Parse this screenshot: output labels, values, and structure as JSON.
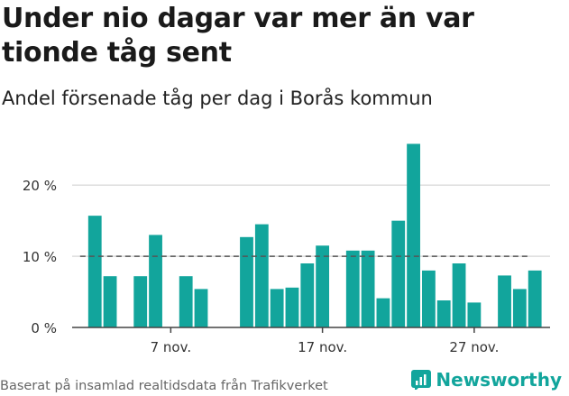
{
  "title": "Under nio dagar var mer än var tionde tåg sent",
  "subtitle": "Andel försenade tåg per dag i Borås kommun",
  "source": "Baserat på insamlad realtidsdata från Trafikverket",
  "brand": "Newsworthy",
  "colors": {
    "bar": "#12a59c",
    "reference_line": "#555555",
    "grid": "#dddddd",
    "brand": "#12a59c"
  },
  "chart_data": {
    "type": "bar",
    "title": "Andel försenade tåg per dag i Borås kommun",
    "xlabel": "",
    "ylabel": "",
    "x_unit": "day of month (november)",
    "x_ticks": [
      {
        "day": 7,
        "label": "7 nov."
      },
      {
        "day": 17,
        "label": "17 nov."
      },
      {
        "day": 27,
        "label": "27 nov."
      }
    ],
    "y_ticks": [
      {
        "value": 0,
        "label": "0 %"
      },
      {
        "value": 10,
        "label": "10 %"
      },
      {
        "value": 20,
        "label": "20 %"
      }
    ],
    "ylim": [
      0,
      27
    ],
    "xlim": [
      0.5,
      32.0
    ],
    "reference_value": 10,
    "grid": true,
    "bars": [
      {
        "day": 2,
        "value": 15.7
      },
      {
        "day": 3,
        "value": 7.2
      },
      {
        "day": 5,
        "value": 7.2
      },
      {
        "day": 6,
        "value": 13.0
      },
      {
        "day": 8,
        "value": 7.2
      },
      {
        "day": 9,
        "value": 5.4
      },
      {
        "day": 12,
        "value": 12.7
      },
      {
        "day": 13,
        "value": 14.5
      },
      {
        "day": 14,
        "value": 5.4
      },
      {
        "day": 15,
        "value": 5.6
      },
      {
        "day": 16,
        "value": 9.0
      },
      {
        "day": 17,
        "value": 11.5
      },
      {
        "day": 19,
        "value": 10.8
      },
      {
        "day": 20,
        "value": 10.8
      },
      {
        "day": 21,
        "value": 4.1
      },
      {
        "day": 22,
        "value": 15.0
      },
      {
        "day": 23,
        "value": 25.8
      },
      {
        "day": 24,
        "value": 8.0
      },
      {
        "day": 25,
        "value": 3.8
      },
      {
        "day": 26,
        "value": 9.0
      },
      {
        "day": 27,
        "value": 3.5
      },
      {
        "day": 29,
        "value": 7.3
      },
      {
        "day": 30,
        "value": 5.4
      },
      {
        "day": 31,
        "value": 8.0
      }
    ]
  }
}
